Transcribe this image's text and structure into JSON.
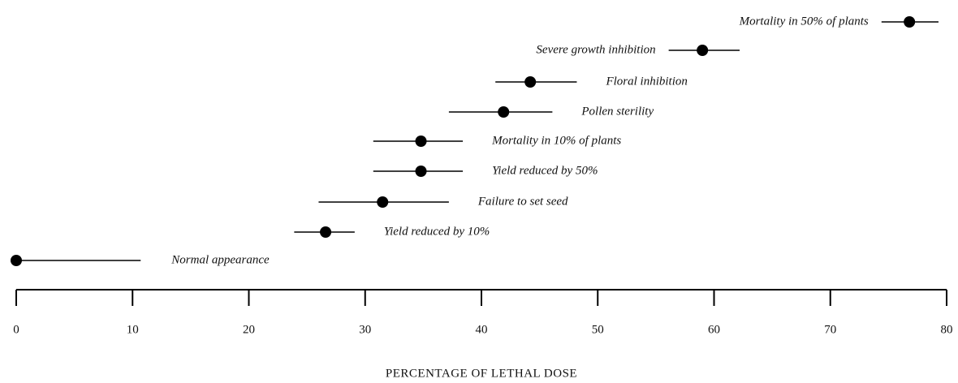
{
  "chart_data": {
    "type": "dot_range",
    "categories": [
      "Mortality in 50% of plants",
      "Severe growth inhibition",
      "Floral inhibition",
      "Pollen sterility",
      "Mortality in 10% of plants",
      "Yield reduced by 50%",
      "Failure to set seed",
      "Yield reduced by 10%",
      "Normal appearance"
    ],
    "values": [
      76.8,
      59.0,
      44.2,
      41.9,
      34.8,
      34.8,
      31.5,
      26.6,
      0
    ],
    "low": [
      74.4,
      56.1,
      41.2,
      37.2,
      30.7,
      30.7,
      26.0,
      23.9,
      0
    ],
    "high": [
      79.3,
      62.2,
      48.2,
      46.1,
      38.4,
      38.4,
      37.2,
      29.1,
      10.7
    ],
    "color": "#000000",
    "xlabel": "PERCENTAGE OF LETHAL DOSE",
    "xlim": [
      0,
      80
    ],
    "xticks": [
      0,
      10,
      20,
      30,
      40,
      50,
      60,
      70,
      80
    ]
  }
}
